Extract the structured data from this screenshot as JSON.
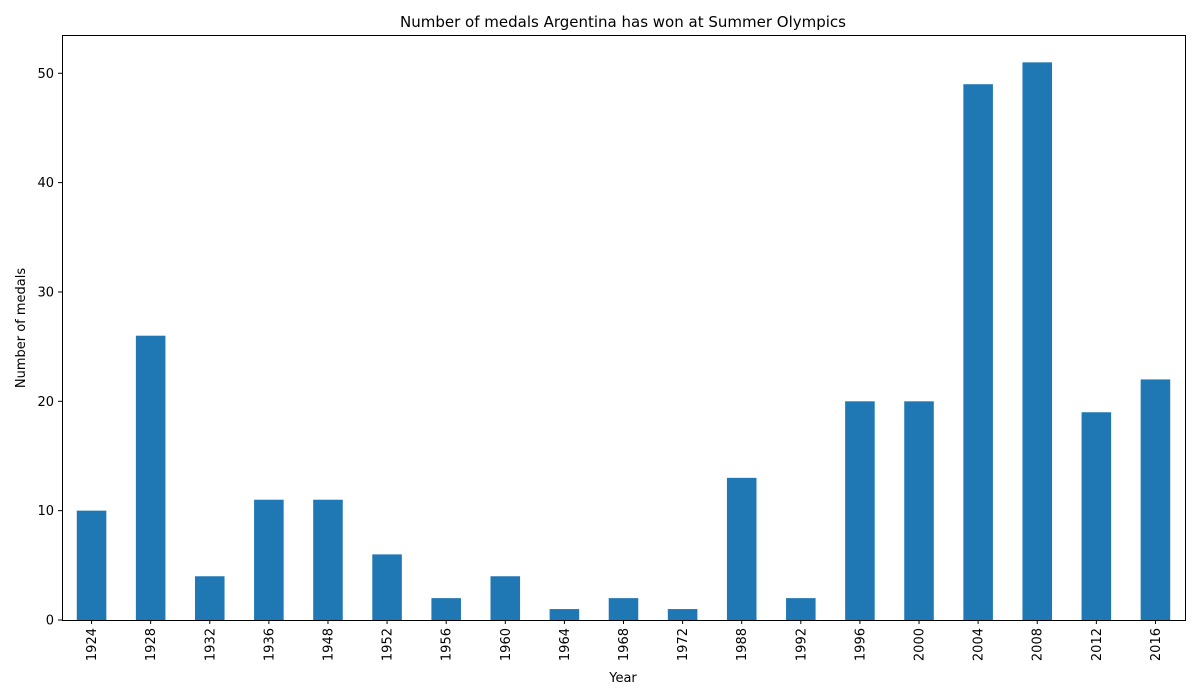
{
  "chart_data": {
    "type": "bar",
    "title": "Number of medals Argentina has won at Summer Olympics",
    "xlabel": "Year",
    "ylabel": "Number of medals",
    "categories": [
      "1924",
      "1928",
      "1932",
      "1936",
      "1948",
      "1952",
      "1956",
      "1960",
      "1964",
      "1968",
      "1972",
      "1988",
      "1992",
      "1996",
      "2000",
      "2004",
      "2008",
      "2012",
      "2016"
    ],
    "values": [
      10,
      26,
      4,
      11,
      11,
      6,
      2,
      4,
      1,
      2,
      1,
      13,
      2,
      20,
      20,
      49,
      51,
      19,
      22
    ],
    "ylim": [
      0,
      53.5
    ],
    "yticks": [
      0,
      10,
      20,
      30,
      40,
      50
    ],
    "bar_color": "#1f77b4",
    "grid": false,
    "legend": "none"
  }
}
